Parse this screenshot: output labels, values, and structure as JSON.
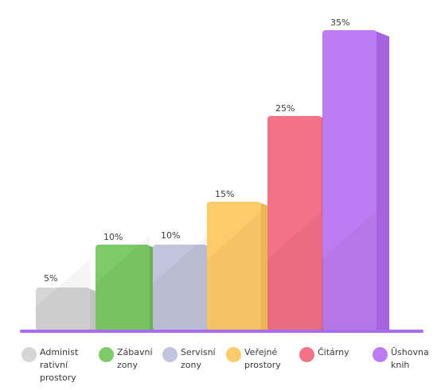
{
  "chart_data": {
    "type": "bar",
    "categories": [
      "Administ\nrativní\nprostory",
      "Zábavní\nzony",
      "Servisní\nzony",
      "Veřejné\nprostory",
      "Čitárny",
      "Ūshovna\nknih"
    ],
    "values": [
      5,
      10,
      10,
      15,
      25,
      35
    ],
    "value_labels": [
      "5%",
      "10%",
      "10%",
      "15%",
      "25%",
      "35%"
    ],
    "colors": [
      "#d6d6d6",
      "#7ccb68",
      "#c0c4dc",
      "#fdcb69",
      "#f47186",
      "#bd7bf1"
    ],
    "side_colors": [
      "#c3c3c3",
      "#67b356",
      "#a9add0",
      "#eab553",
      "#dc5b73",
      "#a763df"
    ],
    "baseline_color": "#a96cf0",
    "ylim": [
      0,
      35
    ],
    "grid": false,
    "legend": "bottom"
  }
}
